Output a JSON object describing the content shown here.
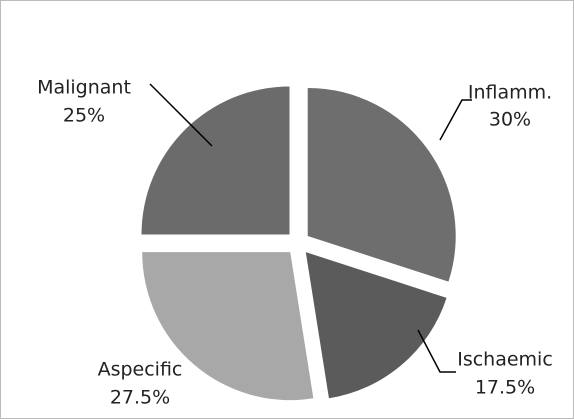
{
  "chart_data": {
    "type": "pie",
    "categories": [
      "Inflamm.",
      "Ischaemic",
      "Aspecific",
      "Malignant"
    ],
    "values": [
      30,
      17.5,
      27.5,
      25
    ],
    "value_labels": [
      "30%",
      "17.5%",
      "27.5%",
      "25%"
    ],
    "colors": [
      "#6e6e6e",
      "#5b5b5b",
      "#a8a8a8",
      "#6b6b6b"
    ]
  }
}
